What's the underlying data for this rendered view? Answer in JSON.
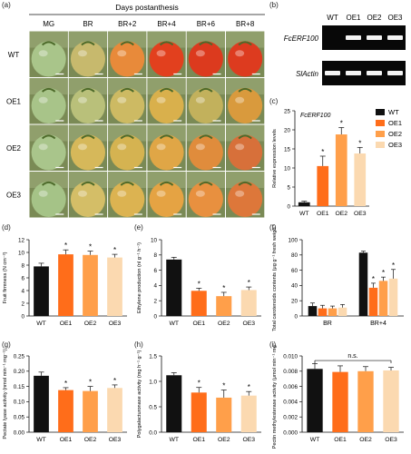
{
  "panels": {
    "a": "(a)",
    "b": "(b)",
    "c": "(c)",
    "d": "(d)",
    "e": "(e)",
    "f": "(f)",
    "g": "(g)",
    "h": "(h)",
    "i": "(i)"
  },
  "photo": {
    "header": "Days postanthesis",
    "columns": [
      "MG",
      "BR",
      "BR+2",
      "BR+4",
      "BR+6",
      "BR+8"
    ],
    "rows": [
      "WT",
      "OE1",
      "OE2",
      "OE3"
    ],
    "colors": [
      [
        "#a9c58a",
        "#c7b96d",
        "#e88a3a",
        "#e2401e",
        "#dc3a1e",
        "#dd3b1f"
      ],
      [
        "#a8c489",
        "#b9c07a",
        "#cdba63",
        "#d9b04c",
        "#c2b15c",
        "#d99a3d"
      ],
      [
        "#a9c58b",
        "#d6b85a",
        "#d5b351",
        "#e0a646",
        "#e08c3c",
        "#d7703a"
      ],
      [
        "#a5c387",
        "#d4be67",
        "#dcb351",
        "#e5a343",
        "#e8903f",
        "#dd773a"
      ]
    ]
  },
  "gel": {
    "lanes": [
      "WT",
      "OE1",
      "OE2",
      "OE3"
    ],
    "rows": [
      "FcERF100",
      "SlActin"
    ],
    "bands": [
      [
        false,
        true,
        true,
        true
      ],
      [
        true,
        true,
        true,
        true
      ]
    ]
  },
  "colors": {
    "WT": "#111111",
    "OE1": "#ff6d1a",
    "OE2": "#ff9f4a",
    "OE3": "#fbd9b0"
  },
  "chart_data": [
    {
      "panel": "c",
      "type": "bar",
      "inner_title": "FcERF100",
      "categories": [
        "WT",
        "OE1",
        "OE2",
        "OE3"
      ],
      "values": [
        1.0,
        10.5,
        18.8,
        13.8
      ],
      "errors": [
        0.3,
        2.6,
        1.8,
        1.6
      ],
      "stars": [
        "",
        "*",
        "*",
        "*"
      ],
      "ylabel": "Relative expression levels",
      "ylim": [
        0,
        25
      ],
      "yticks": [
        0,
        5,
        10,
        15,
        20,
        25
      ],
      "legend": [
        "WT",
        "OE1",
        "OE2",
        "OE3"
      ]
    },
    {
      "panel": "d",
      "type": "bar",
      "categories": [
        "WT",
        "OE1",
        "OE2",
        "OE3"
      ],
      "values": [
        7.8,
        9.7,
        9.6,
        9.2
      ],
      "errors": [
        0.5,
        0.7,
        0.6,
        0.5
      ],
      "stars": [
        "",
        "*",
        "*",
        "*"
      ],
      "ylabel": "Fruit firmness (N cm⁻²)",
      "ylim": [
        0,
        12
      ],
      "yticks": [
        0,
        2,
        4,
        6,
        8,
        10,
        12
      ]
    },
    {
      "panel": "e",
      "type": "bar",
      "categories": [
        "WT",
        "OE1",
        "OE2",
        "OE3"
      ],
      "values": [
        7.4,
        3.3,
        2.6,
        3.4
      ],
      "errors": [
        0.3,
        0.35,
        0.5,
        0.4
      ],
      "stars": [
        "",
        "*",
        "*",
        "*"
      ],
      "ylabel": "Ethylene production (nl g⁻¹ h⁻¹)",
      "ylim": [
        0,
        10
      ],
      "yticks": [
        0,
        2,
        4,
        6,
        8,
        10
      ]
    },
    {
      "panel": "f",
      "type": "bar",
      "groups": [
        "BR",
        "BR+4"
      ],
      "series": [
        {
          "name": "WT",
          "values": [
            13,
            83
          ],
          "errors": [
            4,
            2
          ]
        },
        {
          "name": "OE1",
          "values": [
            10,
            37
          ],
          "errors": [
            4,
            6
          ]
        },
        {
          "name": "OE2",
          "values": [
            10,
            46
          ],
          "errors": [
            3,
            5
          ]
        },
        {
          "name": "OE3",
          "values": [
            11,
            49
          ],
          "errors": [
            4,
            12
          ]
        }
      ],
      "stars": [
        [
          "",
          "",
          "",
          ""
        ],
        [
          "",
          "*",
          "*",
          "*"
        ]
      ],
      "ylabel": "Total carotenoids contents (μg g⁻¹ fresh weight)",
      "ylim": [
        0,
        100
      ],
      "yticks": [
        0,
        20,
        40,
        60,
        80,
        100
      ]
    },
    {
      "panel": "g",
      "type": "bar",
      "categories": [
        "WT",
        "OE1",
        "OE2",
        "OE3"
      ],
      "values": [
        0.185,
        0.138,
        0.135,
        0.145
      ],
      "errors": [
        0.012,
        0.008,
        0.015,
        0.01
      ],
      "stars": [
        "",
        "*",
        "*",
        "*"
      ],
      "ylabel": "Pectate lyase activity (nmol min⁻¹ mg⁻¹)",
      "ylim": [
        0,
        0.25
      ],
      "yticks": [
        "0.00",
        "0.05",
        "0.10",
        "0.15",
        "0.20",
        "0.25"
      ]
    },
    {
      "panel": "h",
      "type": "bar",
      "categories": [
        "WT",
        "OE1",
        "OE2",
        "OE3"
      ],
      "values": [
        1.12,
        0.78,
        0.68,
        0.72
      ],
      "errors": [
        0.05,
        0.1,
        0.15,
        0.08
      ],
      "stars": [
        "",
        "*",
        "*",
        "*"
      ],
      "ylabel": "Polygalacturonase activity (mg h⁻¹ g⁻¹)",
      "ylim": [
        0,
        1.5
      ],
      "yticks": [
        "0.0",
        "0.5",
        "1.0",
        "1.5"
      ]
    },
    {
      "panel": "i",
      "type": "bar",
      "categories": [
        "WT",
        "OE1",
        "OE2",
        "OE3"
      ],
      "values": [
        0.0083,
        0.0079,
        0.008,
        0.0081
      ],
      "errors": [
        0.0007,
        0.0008,
        0.0006,
        0.0004
      ],
      "stars": [
        "",
        "",
        "",
        ""
      ],
      "annotation": "n.s.",
      "ylabel": "Pectin methylesterase activity (μmol min⁻¹ mg⁻¹)",
      "ylim": [
        0,
        0.01
      ],
      "yticks": [
        "0.000",
        "0.002",
        "0.004",
        "0.006",
        "0.008",
        "0.010"
      ]
    }
  ]
}
